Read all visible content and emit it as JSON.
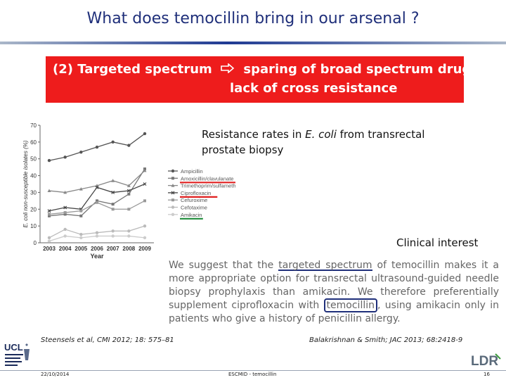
{
  "title": "What does temocillin bring in our arsenal ?",
  "banner": {
    "prefix": "(2) Targeted spectrum",
    "line1_rest": "sparing of broad spectrum drugs",
    "line2": "lack of cross resistance"
  },
  "caption": {
    "pre": "Resistance rates in ",
    "italic": "E. coli",
    "post": " from transrectal prostate biopsy"
  },
  "clinical_interest": "Clinical interest",
  "quote": {
    "p1": "We suggest that the ",
    "p2": "targeted spectrum",
    "p3": " of temocillin makes it a more appropriate option for transrectal ultrasound-guided needle biopsy prophylaxis than amikacin. We therefore preferentially supplement ciprofloxacin with ",
    "p4": "temocillin",
    "p5": ", using amikacin only in patients who give a history of penicillin allergy."
  },
  "references": {
    "left": "Steensels et al, CMI 2012; 18: 575–81",
    "right": "Balakrishnan & Smith; JAC 2013; 68:2418-9"
  },
  "footer": {
    "date": "22/10/2014",
    "event": "ESCMID - temocillin",
    "page": "16"
  },
  "logos": {
    "left": "UCL",
    "right": "LDR"
  },
  "icons": {
    "banner_arrow": "hollow-right-arrow-icon"
  },
  "colors": {
    "title": "#1f2f7a",
    "banner": "#ee1c1c",
    "legend_red_marker": "#e02020",
    "legend_green_marker": "#1e8c3a",
    "highlight_blue": "#1f2f7a"
  },
  "chart_data": {
    "type": "line",
    "x": [
      "2003",
      "2004",
      "2005",
      "2006",
      "2007",
      "2008",
      "2009"
    ],
    "xlabel": "Year",
    "ylabel": "E. coli non-susceptible isolates (%)",
    "yticks": [
      "0",
      "10",
      "20",
      "30",
      "40",
      "50",
      "60",
      "70"
    ],
    "ylim": [
      0,
      70
    ],
    "grid": false,
    "legend_position": "right",
    "series": [
      {
        "name": "Ampicillin",
        "values": [
          49,
          51,
          54,
          57,
          60,
          58,
          65
        ]
      },
      {
        "name": "Amoxicillin/clavulanate",
        "values": [
          16,
          17,
          16,
          25,
          23,
          29,
          44
        ]
      },
      {
        "name": "Trimethoprim/sulfamethoxazole",
        "values": [
          31,
          30,
          32,
          34,
          37,
          34,
          43
        ]
      },
      {
        "name": "Ciprofloxacin",
        "values": [
          19,
          21,
          20,
          33,
          30,
          31,
          35
        ]
      },
      {
        "name": "Cefuroxime",
        "values": [
          17,
          18,
          19,
          24,
          20,
          20,
          25
        ]
      },
      {
        "name": "Cefotaxime",
        "values": [
          3,
          8,
          5,
          6,
          7,
          7,
          10
        ]
      },
      {
        "name": "Amikacin",
        "values": [
          1,
          4,
          3,
          4,
          4,
          4,
          3
        ]
      }
    ],
    "legend_markers": {
      "Amoxicillin/clavulanate": "red",
      "Ciprofloxacin": "red",
      "Amikacin": "green"
    }
  }
}
